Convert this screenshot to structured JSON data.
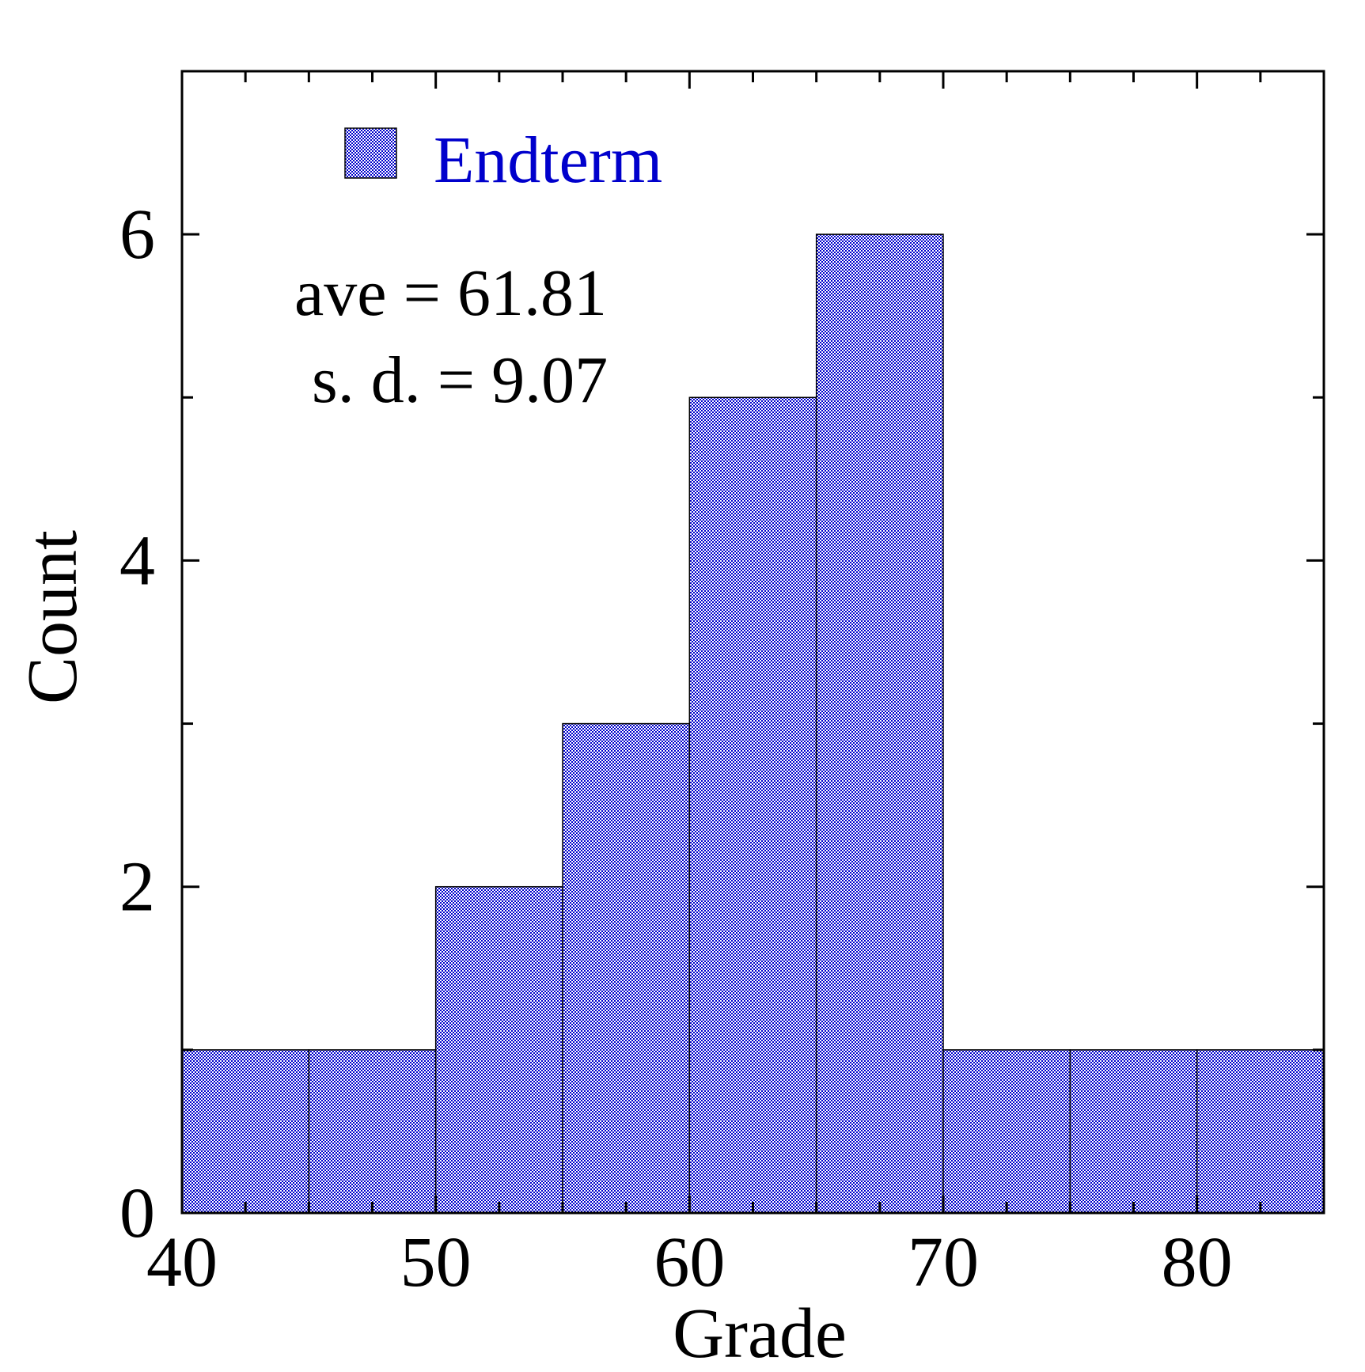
{
  "chart_data": {
    "type": "bar",
    "histogram": true,
    "bin_edges": [
      40,
      45,
      50,
      55,
      60,
      65,
      70,
      75,
      80,
      85
    ],
    "values": [
      1,
      1,
      2,
      3,
      5,
      6,
      1,
      1,
      1
    ],
    "series": [
      {
        "name": "Endterm",
        "values": [
          1,
          1,
          2,
          3,
          5,
          6,
          1,
          1,
          1
        ]
      }
    ],
    "xlabel": "Grade",
    "ylabel": "Count",
    "xlim": [
      40,
      85
    ],
    "ylim": [
      0,
      7
    ],
    "x_ticks": [
      "40",
      "50",
      "60",
      "70",
      "80"
    ],
    "y_ticks": [
      "0",
      "2",
      "4",
      "6"
    ],
    "annotations": [
      "ave = 61.81",
      "s. d. = 9.07"
    ],
    "legend_position": "top-left",
    "grid": false,
    "colors": {
      "fill": "#0000cc",
      "edge": "#000000",
      "legend_text": "#0000cc"
    }
  }
}
